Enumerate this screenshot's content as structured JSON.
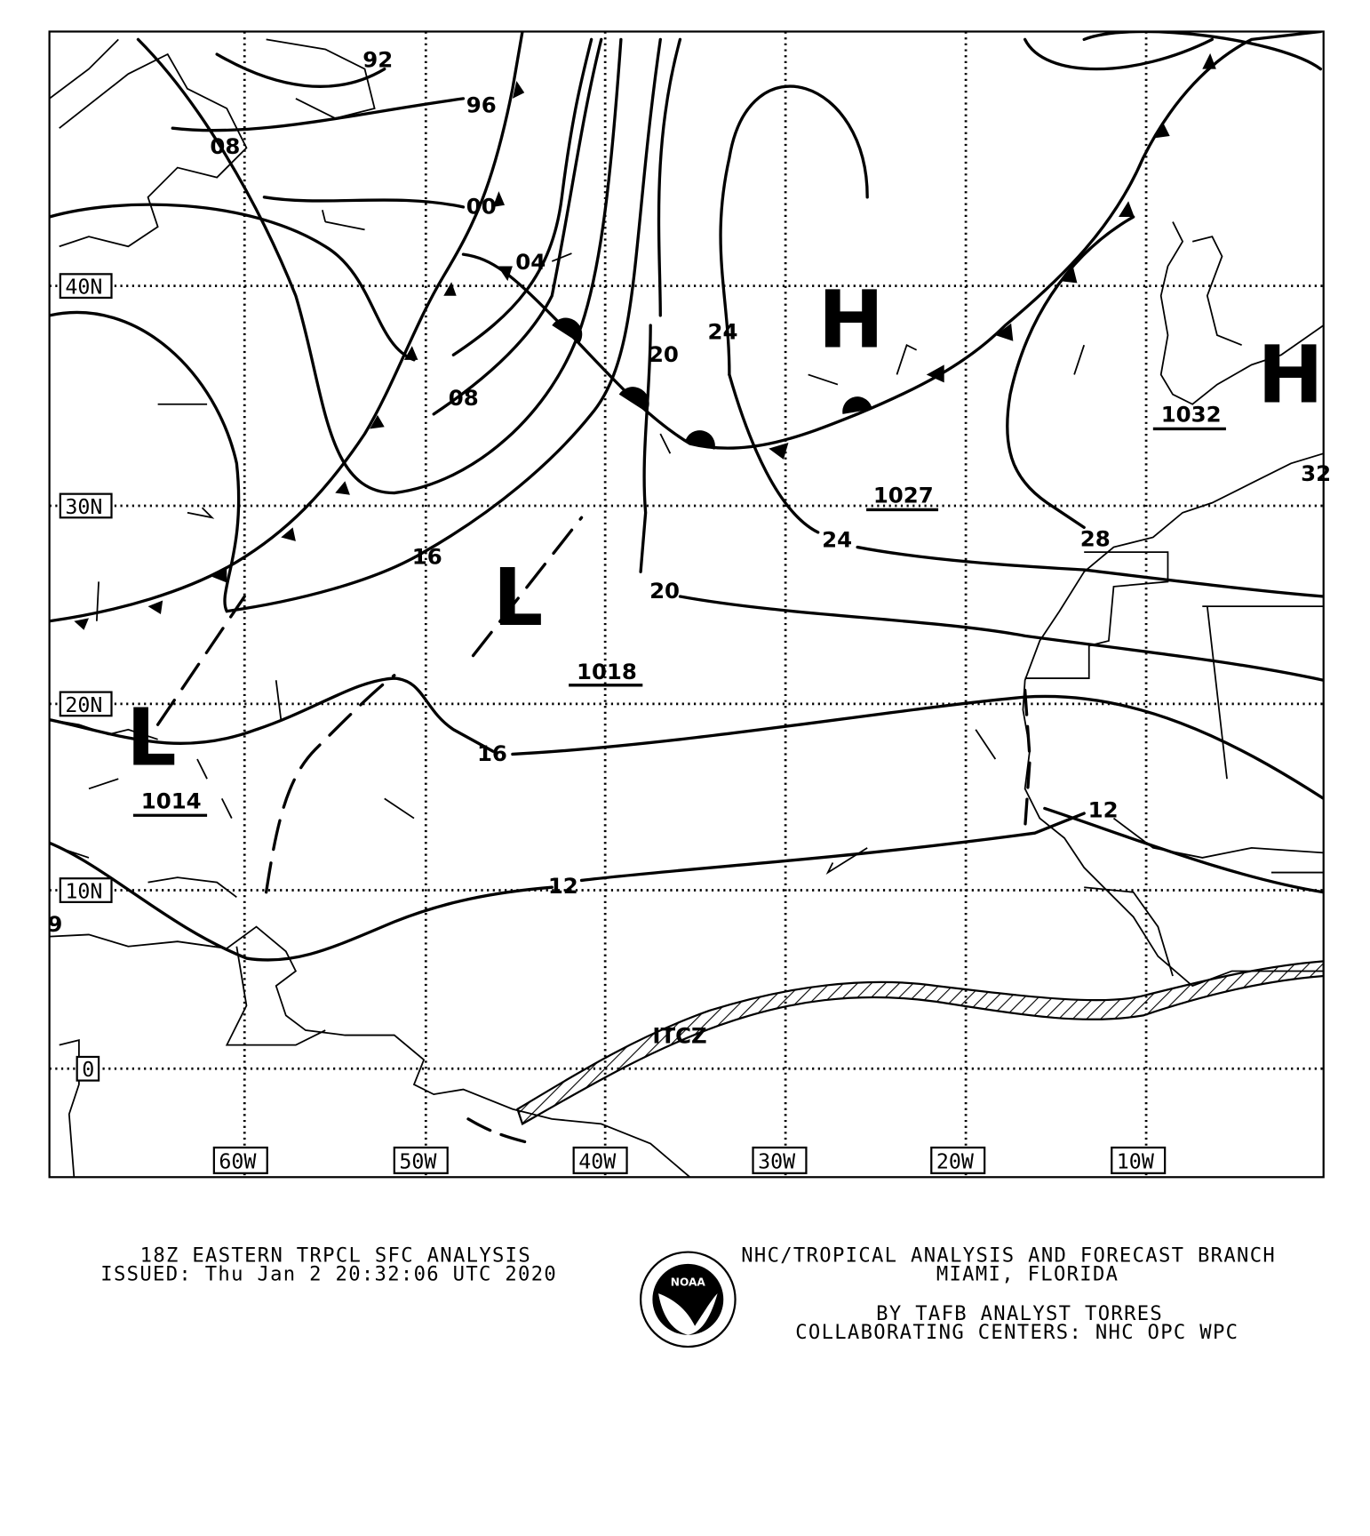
{
  "map": {
    "latitude_labels": [
      "40N",
      "30N",
      "20N",
      "10N",
      "0"
    ],
    "longitude_labels": [
      "60W",
      "50W",
      "40W",
      "30W",
      "20W",
      "10W"
    ],
    "isobar_labels": [
      "96",
      "92",
      "00",
      "04",
      "08",
      "08",
      "16",
      "16",
      "20",
      "20",
      "24",
      "24",
      "28",
      "12",
      "12",
      "32",
      "9"
    ],
    "pressure_centers": [
      {
        "symbol": "H",
        "value": "1027"
      },
      {
        "symbol": "H",
        "value": "1032"
      },
      {
        "symbol": "L",
        "value": "1018"
      },
      {
        "symbol": "L",
        "value": "1014"
      }
    ],
    "feature_label": "ITCZ"
  },
  "footer": {
    "title": "18Z EASTERN TRPCL SFC ANALYSIS",
    "issued": "ISSUED: Thu Jan 2 20:32:06 UTC 2020",
    "logo_text": "NOAA",
    "branch": "NHC/TROPICAL ANALYSIS AND FORECAST BRANCH",
    "location": "MIAMI,  FLORIDA",
    "analyst": "BY TAFB ANALYST  TORRES",
    "collaborating": "COLLABORATING CENTERS: NHC OPC WPC"
  }
}
